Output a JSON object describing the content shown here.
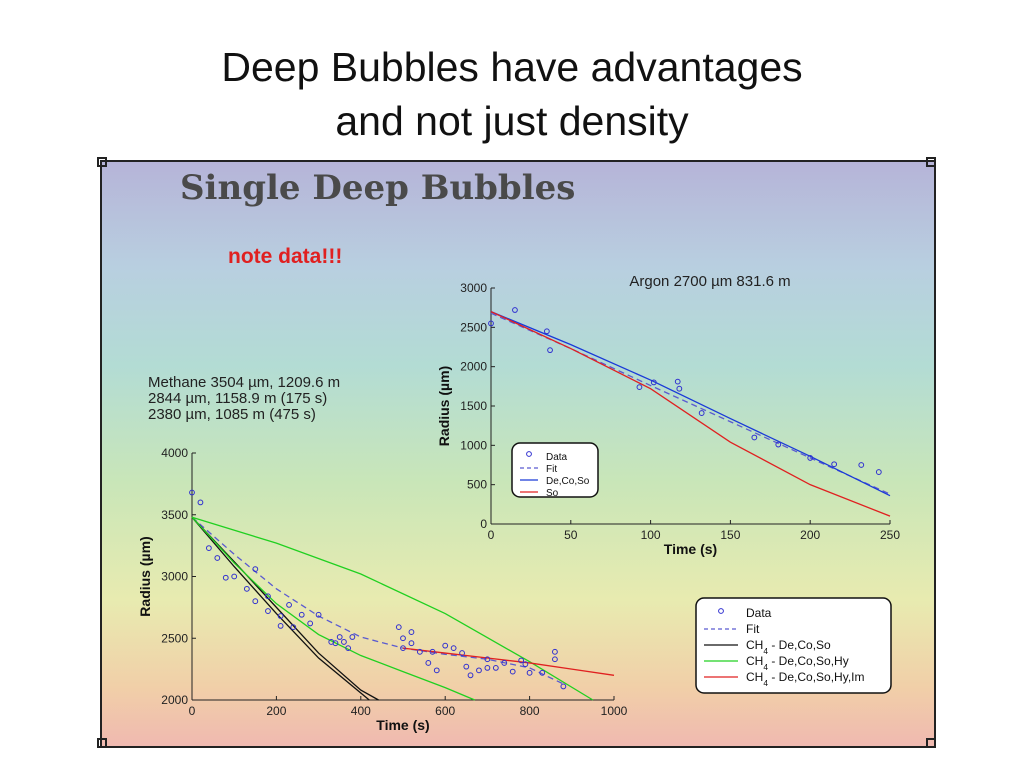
{
  "slide": {
    "title_line1": "Deep Bubbles have advantages",
    "title_line2": "and not just density"
  },
  "panel": {
    "heading": "Single Deep Bubbles",
    "note": "note data!!!"
  },
  "colors": {
    "data_marker": "#3030d0",
    "fit": "#5a5ad0",
    "black_line": "#111111",
    "green_line": "#20d020",
    "red_line": "#e02020",
    "blue_line": "#1a3ad8"
  },
  "chart_data": [
    {
      "type": "scatter",
      "title": "Argon 2700 µm 831.6 m",
      "xlabel": "Time (s)",
      "ylabel": "Radius (µm)",
      "xlim": [
        0,
        250
      ],
      "ylim": [
        0,
        3000
      ],
      "xticks": [
        "0",
        "50",
        "100",
        "150",
        "200",
        "250"
      ],
      "yticks": [
        "0",
        "500",
        "1000",
        "1500",
        "2000",
        "2500",
        "3000"
      ],
      "legend": {
        "position": "lower-left",
        "entries": [
          {
            "label": "Data",
            "style": "marker",
            "color": "#3030d0"
          },
          {
            "label": "Fit",
            "style": "dashed",
            "color": "#5a5ad0"
          },
          {
            "label": "De,Co,So",
            "style": "solid",
            "color": "#1a3ad8"
          },
          {
            "label": "So",
            "style": "solid",
            "color": "#e02020"
          }
        ]
      },
      "points": [
        [
          0,
          2550
        ],
        [
          15,
          2720
        ],
        [
          35,
          2450
        ],
        [
          37,
          2210
        ],
        [
          93,
          1740
        ],
        [
          102,
          1800
        ],
        [
          117,
          1810
        ],
        [
          118,
          1720
        ],
        [
          132,
          1410
        ],
        [
          165,
          1100
        ],
        [
          180,
          1010
        ],
        [
          200,
          840
        ],
        [
          215,
          760
        ],
        [
          232,
          750
        ],
        [
          243,
          660
        ]
      ],
      "series": [
        {
          "name": "Fit",
          "style": "dashed",
          "color": "#5a5ad0",
          "x": [
            0,
            50,
            100,
            150,
            200,
            250
          ],
          "y": [
            2680,
            2230,
            1760,
            1300,
            840,
            380
          ]
        },
        {
          "name": "De,Co,So",
          "style": "solid",
          "color": "#1a3ad8",
          "x": [
            0,
            50,
            100,
            150,
            200,
            250
          ],
          "y": [
            2700,
            2280,
            1830,
            1340,
            860,
            360
          ]
        },
        {
          "name": "So",
          "style": "solid",
          "color": "#e02020",
          "x": [
            0,
            50,
            100,
            150,
            200,
            250
          ],
          "y": [
            2700,
            2230,
            1720,
            1040,
            500,
            100
          ]
        }
      ]
    },
    {
      "type": "scatter",
      "annotation_lines": [
        "Methane 3504 µm, 1209.6 m",
        "2844 µm, 1158.9 m (175 s)",
        "2380 µm, 1085 m (475 s)"
      ],
      "xlabel": "Time (s)",
      "ylabel": "Radius (µm)",
      "xlim": [
        0,
        1000
      ],
      "ylim": [
        2000,
        4000
      ],
      "xticks": [
        "0",
        "200",
        "400",
        "600",
        "800",
        "1000"
      ],
      "yticks": [
        "2000",
        "2500",
        "3000",
        "3500",
        "4000"
      ],
      "legend": {
        "position": "lower-right",
        "entries": [
          {
            "label": "Data",
            "style": "marker",
            "color": "#3030d0"
          },
          {
            "label": "Fit",
            "style": "dashed",
            "color": "#5a5ad0"
          },
          {
            "label": "CH4 - De,Co,So",
            "style": "solid",
            "color": "#111111"
          },
          {
            "label": "CH4 - De,Co,So,Hy",
            "style": "solid",
            "color": "#20d020"
          },
          {
            "label": "CH4 - De,Co,So,Hy,Im",
            "style": "solid",
            "color": "#e02020"
          }
        ]
      },
      "points": [
        [
          0,
          3680
        ],
        [
          20,
          3600
        ],
        [
          40,
          3230
        ],
        [
          60,
          3150
        ],
        [
          80,
          2990
        ],
        [
          100,
          3000
        ],
        [
          130,
          2900
        ],
        [
          150,
          3060
        ],
        [
          150,
          2800
        ],
        [
          180,
          2840
        ],
        [
          180,
          2720
        ],
        [
          210,
          2680
        ],
        [
          210,
          2600
        ],
        [
          230,
          2770
        ],
        [
          240,
          2590
        ],
        [
          260,
          2690
        ],
        [
          280,
          2620
        ],
        [
          300,
          2690
        ],
        [
          330,
          2470
        ],
        [
          340,
          2460
        ],
        [
          350,
          2510
        ],
        [
          360,
          2470
        ],
        [
          370,
          2420
        ],
        [
          380,
          2510
        ],
        [
          490,
          2590
        ],
        [
          500,
          2500
        ],
        [
          500,
          2420
        ],
        [
          520,
          2550
        ],
        [
          520,
          2460
        ],
        [
          540,
          2390
        ],
        [
          560,
          2300
        ],
        [
          570,
          2390
        ],
        [
          580,
          2240
        ],
        [
          600,
          2440
        ],
        [
          620,
          2420
        ],
        [
          640,
          2380
        ],
        [
          650,
          2270
        ],
        [
          660,
          2200
        ],
        [
          680,
          2240
        ],
        [
          700,
          2260
        ],
        [
          700,
          2330
        ],
        [
          720,
          2260
        ],
        [
          740,
          2300
        ],
        [
          760,
          2230
        ],
        [
          780,
          2320
        ],
        [
          790,
          2290
        ],
        [
          800,
          2220
        ],
        [
          830,
          2220
        ],
        [
          860,
          2330
        ],
        [
          860,
          2390
        ],
        [
          880,
          2110
        ]
      ],
      "series": [
        {
          "name": "Fit",
          "style": "dashed",
          "color": "#5a5ad0",
          "x": [
            0,
            100,
            200,
            300,
            400,
            500,
            600,
            700,
            800,
            880
          ],
          "y": [
            3480,
            3180,
            2900,
            2680,
            2510,
            2420,
            2370,
            2330,
            2260,
            2130
          ]
        },
        {
          "name": "CH4 - De,Co,So",
          "style": "solid",
          "color": "#111111",
          "x": [
            0,
            100,
            200,
            300,
            400,
            442
          ],
          "y": [
            3480,
            3120,
            2750,
            2380,
            2080,
            2000
          ]
        },
        {
          "name": "CH4 - De,Co,So (second)",
          "style": "solid",
          "color": "#111111",
          "x": [
            0,
            100,
            200,
            300,
            420
          ],
          "y": [
            3480,
            3080,
            2700,
            2340,
            2000
          ]
        },
        {
          "name": "CH4 - De,Co,So,Hy",
          "style": "solid",
          "color": "#20d020",
          "x": [
            0,
            200,
            400,
            600,
            800,
            950
          ],
          "y": [
            3480,
            3270,
            3020,
            2700,
            2310,
            2000
          ]
        },
        {
          "name": "CH4 - De,Co,So,Hy (second)",
          "style": "solid",
          "color": "#20d020",
          "x": [
            0,
            100,
            200,
            300,
            400,
            500,
            600,
            670
          ],
          "y": [
            3480,
            3110,
            2780,
            2530,
            2360,
            2230,
            2100,
            2000
          ]
        },
        {
          "name": "CH4 - De,Co,So,Hy,Im",
          "style": "solid",
          "color": "#e02020",
          "x": [
            500,
            600,
            700,
            800,
            900,
            1000
          ],
          "y": [
            2420,
            2380,
            2340,
            2300,
            2250,
            2200
          ]
        }
      ]
    }
  ]
}
